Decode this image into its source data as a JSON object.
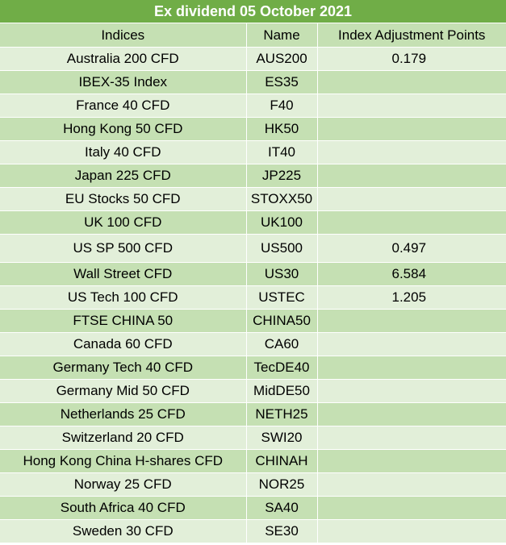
{
  "title": "Ex dividend 05 October 2021",
  "columns": {
    "indices": "Indices",
    "name": "Name",
    "points": "Index Adjustment Points"
  },
  "rows": [
    {
      "index": "Australia 200 CFD",
      "name": "AUS200",
      "points": "0.179"
    },
    {
      "index": "IBEX-35 Index",
      "name": "ES35",
      "points": ""
    },
    {
      "index": "France 40 CFD",
      "name": "F40",
      "points": ""
    },
    {
      "index": "Hong Kong 50 CFD",
      "name": "HK50",
      "points": ""
    },
    {
      "index": "Italy 40 CFD",
      "name": "IT40",
      "points": ""
    },
    {
      "index": "Japan 225 CFD",
      "name": "JP225",
      "points": ""
    },
    {
      "index": "EU Stocks 50 CFD",
      "name": "STOXX50",
      "points": ""
    },
    {
      "index": "UK 100 CFD",
      "name": "UK100",
      "points": ""
    },
    {
      "index": "US SP 500 CFD",
      "name": "US500",
      "points": "0.497"
    },
    {
      "index": "Wall Street CFD",
      "name": "US30",
      "points": "6.584"
    },
    {
      "index": "US Tech 100 CFD",
      "name": "USTEC",
      "points": "1.205"
    },
    {
      "index": "FTSE CHINA 50",
      "name": "CHINA50",
      "points": ""
    },
    {
      "index": "Canada 60 CFD",
      "name": "CA60",
      "points": ""
    },
    {
      "index": "Germany Tech 40 CFD",
      "name": "TecDE40",
      "points": ""
    },
    {
      "index": "Germany Mid 50 CFD",
      "name": "MidDE50",
      "points": ""
    },
    {
      "index": "Netherlands 25 CFD",
      "name": "NETH25",
      "points": ""
    },
    {
      "index": "Switzerland 20 CFD",
      "name": "SWI20",
      "points": ""
    },
    {
      "index": "Hong Kong China H-shares CFD",
      "name": "CHINAH",
      "points": ""
    },
    {
      "index": "Norway 25 CFD",
      "name": "NOR25",
      "points": ""
    },
    {
      "index": "South Africa 40 CFD",
      "name": "SA40",
      "points": ""
    },
    {
      "index": "Sweden 30 CFD",
      "name": "SE30",
      "points": ""
    }
  ]
}
